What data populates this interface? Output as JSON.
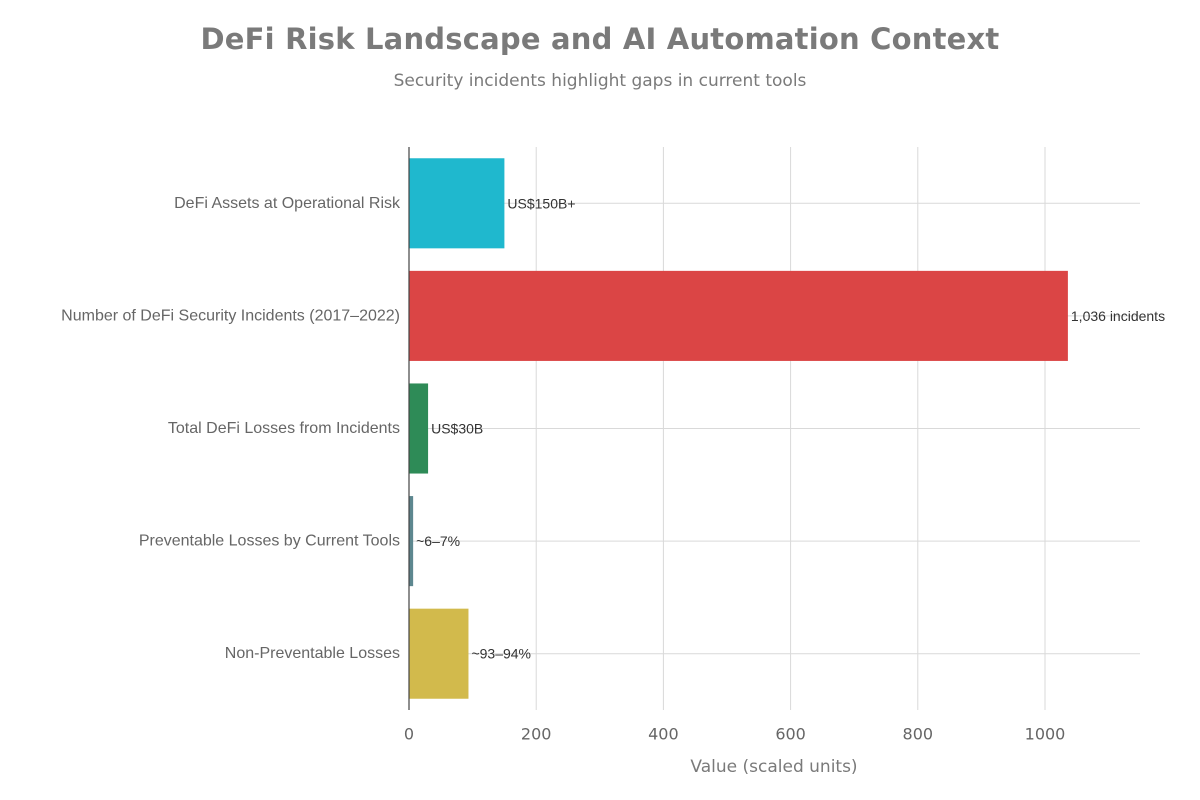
{
  "chart_data": {
    "type": "bar",
    "orientation": "horizontal",
    "title": "DeFi Risk Landscape and AI Automation Context",
    "subtitle": "Security incidents highlight gaps in current tools",
    "xlabel": "Value (scaled units)",
    "ylabel": "",
    "xlim": [
      0,
      1150
    ],
    "xticks": [
      0,
      200,
      400,
      600,
      800,
      1000
    ],
    "grid": true,
    "categories": [
      "DeFi Assets at Operational Risk",
      "Number of DeFi Security Incidents (2017–2022)",
      "Total DeFi Losses from Incidents",
      "Preventable Losses by Current Tools",
      "Non-Preventable Losses"
    ],
    "values": [
      150,
      1036,
      30,
      6.5,
      93.5
    ],
    "data_labels": [
      "US$150B+",
      "1,036 incidents",
      "US$30B",
      "~6–7%",
      "~93–94%"
    ],
    "colors": [
      "#1fb8ce",
      "#db4545",
      "#2e8b57",
      "#5d878f",
      "#d2ba4c"
    ]
  }
}
